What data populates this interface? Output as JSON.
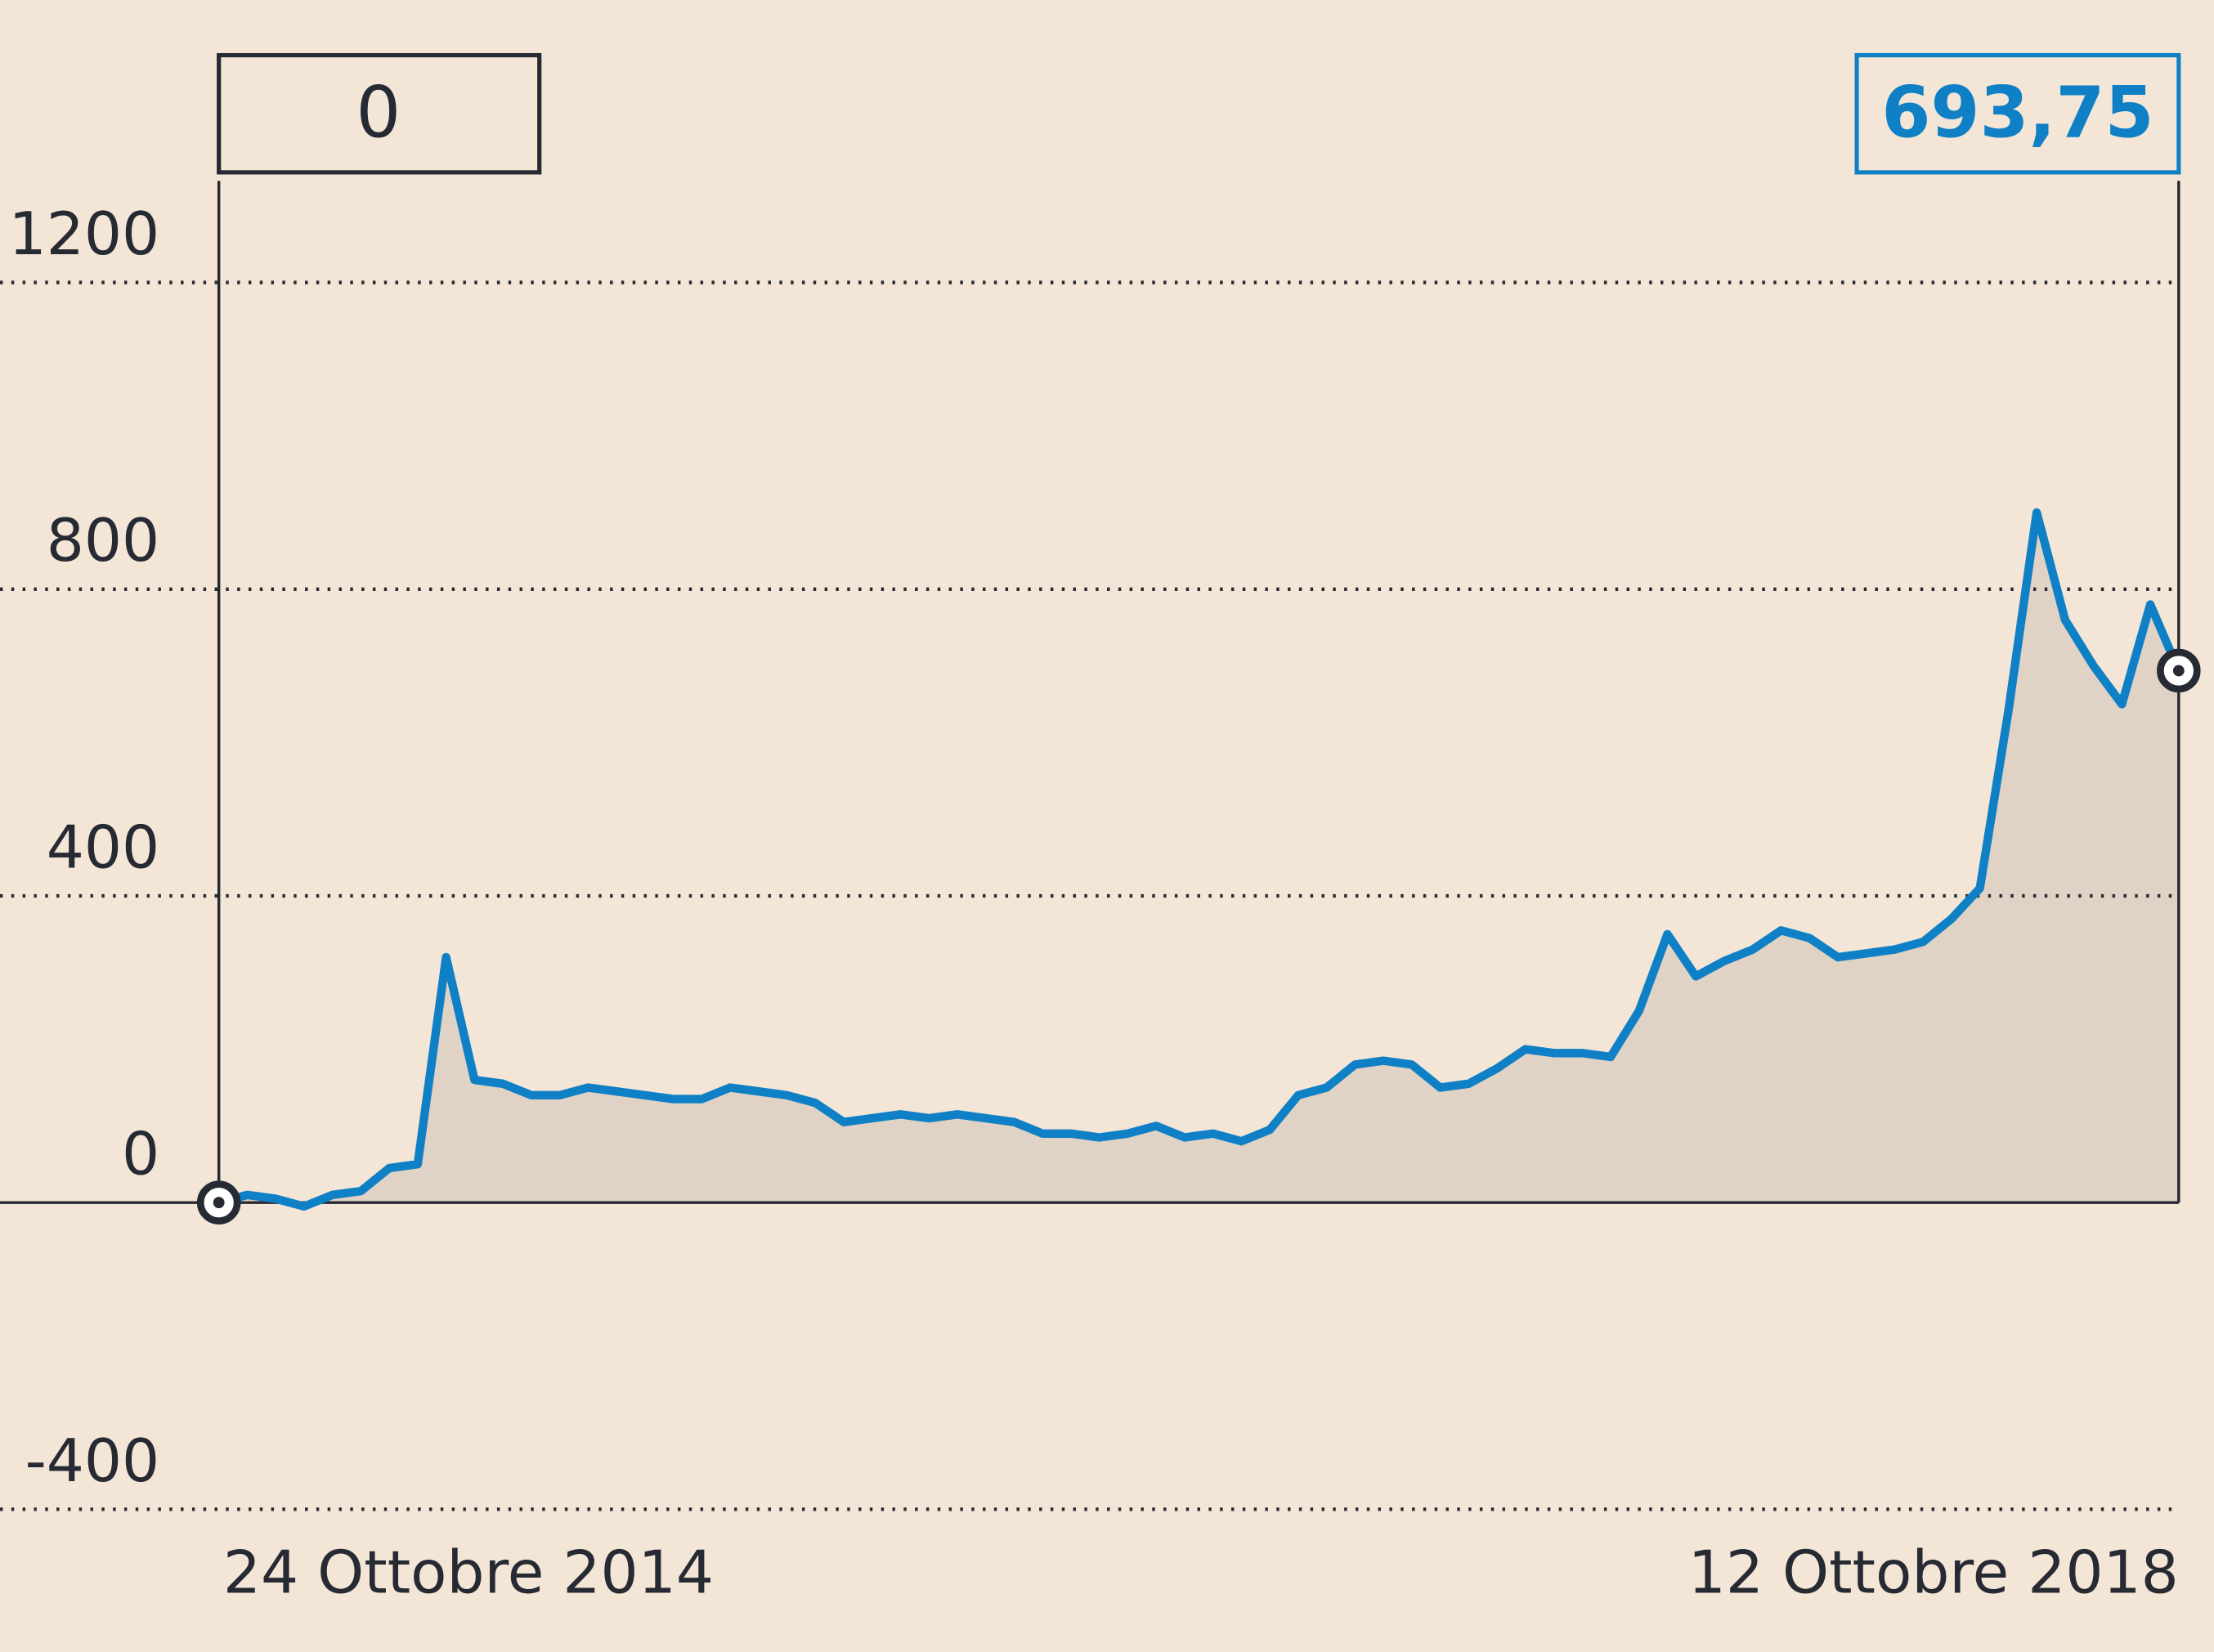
{
  "chart_data": {
    "type": "line",
    "start_label": "24 Ottobre 2014",
    "end_label": "12 Ottobre 2018",
    "start_value": 0,
    "end_value": {
      "value": 693.75,
      "label": "693,75"
    },
    "color": "#0f80c6",
    "fill_color": "#e0d3c5",
    "values": [
      0,
      10,
      5,
      -5,
      10,
      15,
      45,
      50,
      320,
      160,
      155,
      140,
      140,
      150,
      145,
      140,
      135,
      135,
      150,
      145,
      140,
      130,
      105,
      110,
      115,
      110,
      115,
      110,
      105,
      90,
      90,
      85,
      90,
      100,
      85,
      90,
      80,
      95,
      140,
      150,
      180,
      185,
      180,
      150,
      155,
      175,
      200,
      195,
      195,
      190,
      250,
      350,
      295,
      315,
      330,
      355,
      345,
      320,
      325,
      330,
      340,
      370,
      410,
      640,
      900,
      760,
      700,
      650,
      780,
      693.75
    ],
    "ylim": [
      -400,
      1200
    ],
    "yticks": [
      -400,
      0,
      400,
      800,
      1200
    ],
    "grid": true
  }
}
